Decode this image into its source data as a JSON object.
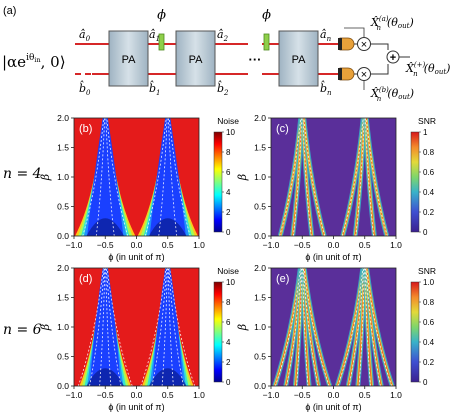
{
  "figure": {
    "panel_a_label": "(a)",
    "schematic": {
      "input_state": "|αe",
      "input_state_exp": "iθ",
      "input_state_sub": "in",
      "input_state_tail": ", 0⟩",
      "pa_label": "PA",
      "phi": "ϕ",
      "ellipsis": "···",
      "mode_labels": {
        "a0": "â",
        "a0_sub": "0",
        "b0": "b̂",
        "b0_sub": "0",
        "a1": "â",
        "a1_sub": "1",
        "b1": "b̂",
        "b1_sub": "1",
        "a2": "â",
        "a2_sub": "2",
        "b2": "b̂",
        "b2_sub": "2",
        "an": "â",
        "an_sub": "n",
        "bn": "b̂",
        "bn_sub": "n"
      },
      "mult": "×",
      "plus": "+",
      "quad_a": "X̂",
      "quad_a_sup": "(a)",
      "quad_a_sub": "n",
      "quad_a_arg": "(θ",
      "quad_a_arg_sub": "out",
      "quad_a_arg_end": ")",
      "quad_b": "X̂",
      "quad_b_sup": "(b)",
      "quad_b_sub": "n",
      "quad_b_arg": "(θ",
      "quad_b_arg_sub": "out",
      "quad_b_arg_end": ")",
      "quad_sum": "X̂",
      "quad_sum_sup": "(+)",
      "quad_sum_sub": "n",
      "quad_sum_arg": "(θ",
      "quad_sum_arg_sub": "out",
      "quad_sum_arg_end": ")"
    },
    "row_labels": {
      "row1": "n = 4",
      "row2": "n = 6"
    },
    "colors": {
      "beam": "#d62728",
      "pa_fill": "#b7c8d4",
      "pa_edge": "#555555",
      "phase_fill": "#8fcf4a",
      "phase_edge": "#4d8a1f",
      "detector": "#e8a13a",
      "saturated": "#e41b1b",
      "snr_background": "#5a2f9a"
    }
  },
  "chart_data": [
    {
      "type": "heatmap",
      "panel": "(b)",
      "colorbar_title": "Noise",
      "colorbar_ticks": [
        "0",
        "2",
        "4",
        "6",
        "8",
        "10"
      ],
      "xlabel": "ϕ (in unit of π)",
      "ylabel": "β",
      "x_ticks": [
        "−1.0",
        "−0.5",
        "0.0",
        "0.5",
        "1.0"
      ],
      "y_ticks": [
        "0.0",
        "0.5",
        "1.0",
        "1.5",
        "2.0"
      ],
      "xlim": [
        -1.0,
        1.0
      ],
      "ylim": [
        0.0,
        2.0
      ],
      "zlim": [
        0,
        10
      ],
      "n": 4
    },
    {
      "type": "heatmap",
      "panel": "(c)",
      "colorbar_title": "SNR",
      "colorbar_ticks": [
        "0",
        "0.2",
        "0.4",
        "0.6",
        "0.8",
        "1"
      ],
      "xlabel": "ϕ (in unit of π)",
      "ylabel": "β",
      "x_ticks": [
        "−1.0",
        "−0.5",
        "0.0",
        "0.5",
        "1.0"
      ],
      "y_ticks": [
        "0.0",
        "0.5",
        "1.0",
        "1.5",
        "2.0"
      ],
      "xlim": [
        -1.0,
        1.0
      ],
      "ylim": [
        0.0,
        2.0
      ],
      "zlim": [
        0,
        1
      ],
      "n": 4
    },
    {
      "type": "heatmap",
      "panel": "(d)",
      "colorbar_title": "Noise",
      "colorbar_ticks": [
        "0",
        "2",
        "4",
        "6",
        "8",
        "10"
      ],
      "xlabel": "ϕ (in unit of π)",
      "ylabel": "β",
      "x_ticks": [
        "−1.0",
        "−0.5",
        "0.0",
        "0.5",
        "1.0"
      ],
      "y_ticks": [
        "0.0",
        "0.5",
        "1.0",
        "1.5",
        "2.0"
      ],
      "xlim": [
        -1.0,
        1.0
      ],
      "ylim": [
        0.0,
        2.0
      ],
      "zlim": [
        0,
        10
      ],
      "n": 6
    },
    {
      "type": "heatmap",
      "panel": "(e)",
      "colorbar_title": "SNR",
      "colorbar_ticks": [
        "0",
        "0.2",
        "0.4",
        "0.6",
        "0.8",
        "1.0"
      ],
      "xlabel": "ϕ (in unit of π)",
      "ylabel": "β",
      "x_ticks": [
        "−1.0",
        "−0.5",
        "0.0",
        "0.5",
        "1.0"
      ],
      "y_ticks": [
        "0.0",
        "0.5",
        "1.0",
        "1.5",
        "2.0"
      ],
      "xlim": [
        -1.0,
        1.0
      ],
      "ylim": [
        0.0,
        2.0
      ],
      "zlim": [
        0,
        1
      ],
      "n": 6
    }
  ]
}
